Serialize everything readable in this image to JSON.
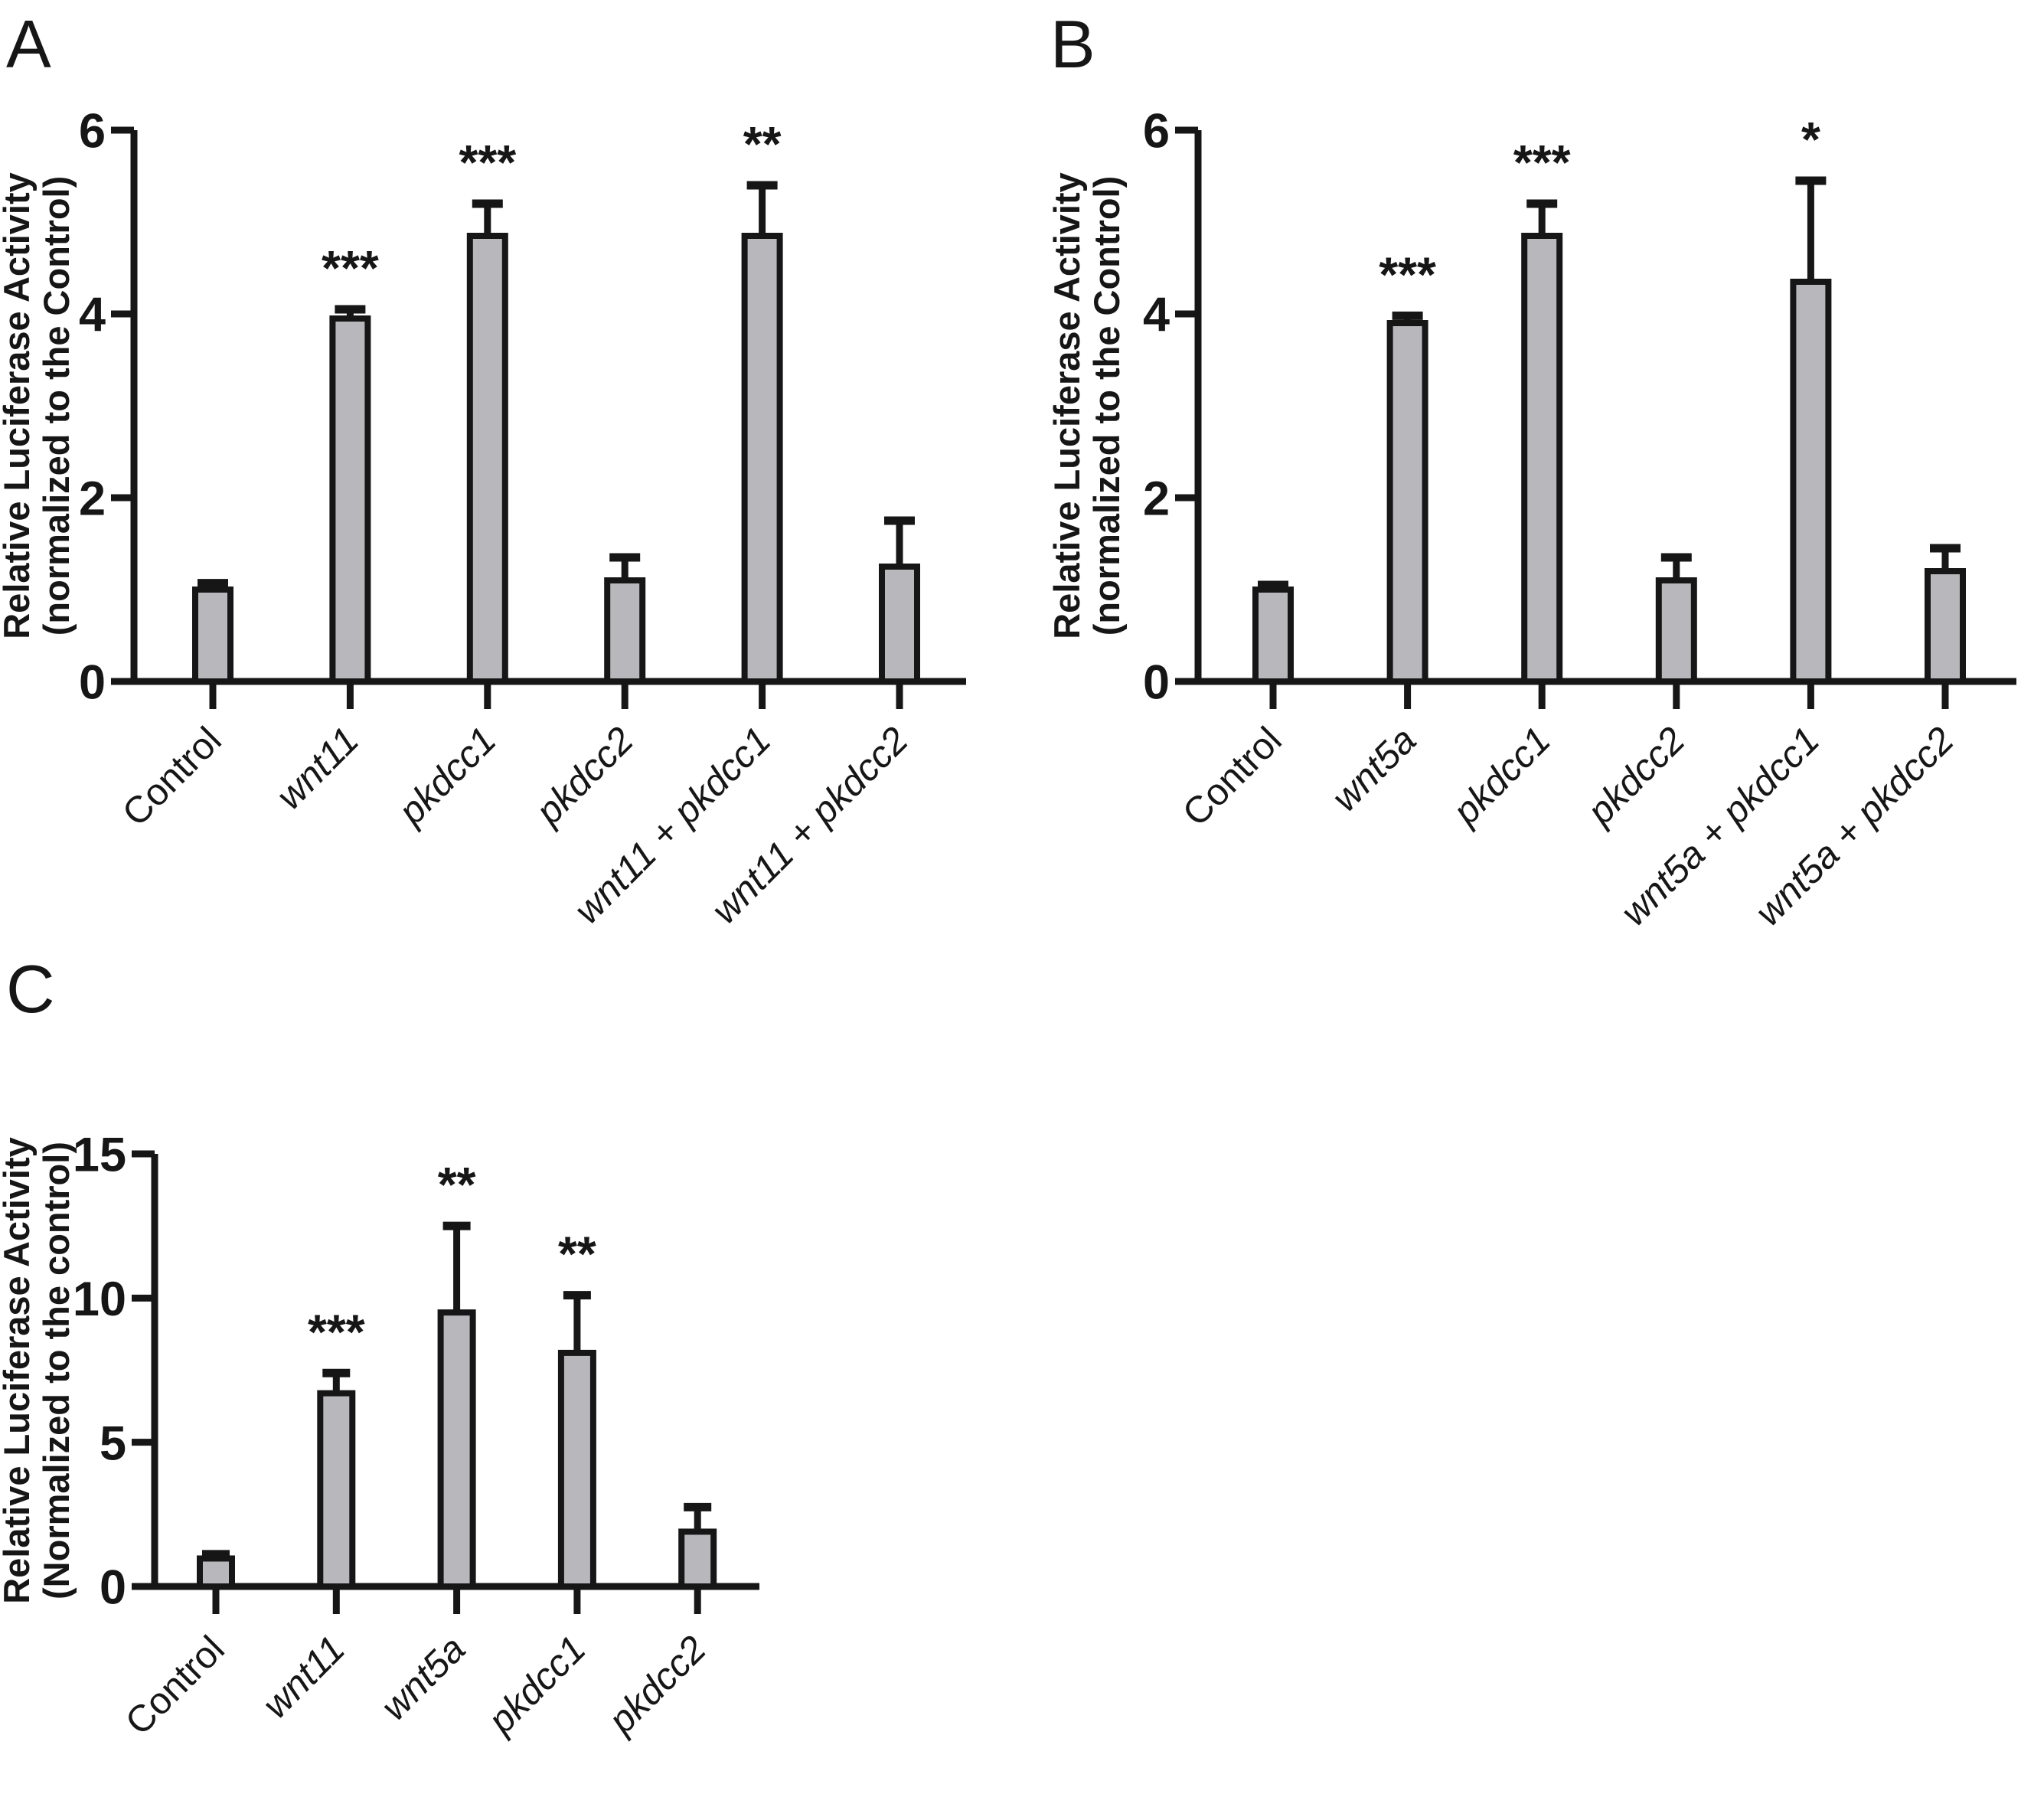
{
  "figure": {
    "background": "#ffffff",
    "bar_fill": "#b8b8bc",
    "ink_color": "#161616"
  },
  "chart_data": [
    {
      "panel": "A",
      "type": "bar",
      "title": "",
      "ylabel": [
        "Relative Luciferase Activity",
        "(normalized to the Control)"
      ],
      "ylim": [
        0,
        6
      ],
      "yticks": [
        0,
        2,
        4,
        6
      ],
      "grid": false,
      "legend": "none",
      "categories": [
        "Control",
        "wnt11",
        "pkdcc1",
        "pkdcc2",
        "wnt11 + pkdcc1",
        "wnt11 + pkdcc2"
      ],
      "italic_flags": [
        false,
        true,
        true,
        true,
        true,
        true
      ],
      "values": [
        1.0,
        3.95,
        4.85,
        1.1,
        4.85,
        1.25
      ],
      "errors_plus": [
        0.07,
        0.1,
        0.35,
        0.25,
        0.55,
        0.5
      ],
      "significance": [
        "",
        "***",
        "***",
        "",
        "**",
        ""
      ]
    },
    {
      "panel": "B",
      "type": "bar",
      "title": "",
      "ylabel": [
        "Relative Luciferase Activity",
        "(normalized to the Control)"
      ],
      "ylim": [
        0,
        6
      ],
      "yticks": [
        0,
        2,
        4,
        6
      ],
      "grid": false,
      "legend": "none",
      "categories": [
        "Control",
        "wnt5a",
        "pkdcc1",
        "pkdcc2",
        "wnt5a + pkdcc1",
        "wnt5a + pkdcc2"
      ],
      "italic_flags": [
        false,
        true,
        true,
        true,
        true,
        true
      ],
      "values": [
        1.0,
        3.9,
        4.85,
        1.1,
        4.35,
        1.2
      ],
      "errors_plus": [
        0.05,
        0.08,
        0.35,
        0.25,
        1.1,
        0.25
      ],
      "significance": [
        "",
        "***",
        "***",
        "",
        "*",
        ""
      ]
    },
    {
      "panel": "C",
      "type": "bar",
      "title": "",
      "ylabel": [
        "Relative Luciferase Activity",
        "(Normalized to the control)"
      ],
      "ylim": [
        0,
        15
      ],
      "yticks": [
        0,
        5,
        10,
        15
      ],
      "grid": false,
      "legend": "none",
      "categories": [
        "Control",
        "wnt11",
        "wnt5a",
        "pkdcc1",
        "pkdcc2"
      ],
      "italic_flags": [
        false,
        true,
        true,
        true,
        true
      ],
      "values": [
        0.97,
        6.7,
        9.5,
        8.1,
        1.9
      ],
      "errors_plus": [
        0.15,
        0.7,
        3.0,
        2.0,
        0.85
      ],
      "significance": [
        "",
        "***",
        "**",
        "**",
        ""
      ]
    }
  ]
}
